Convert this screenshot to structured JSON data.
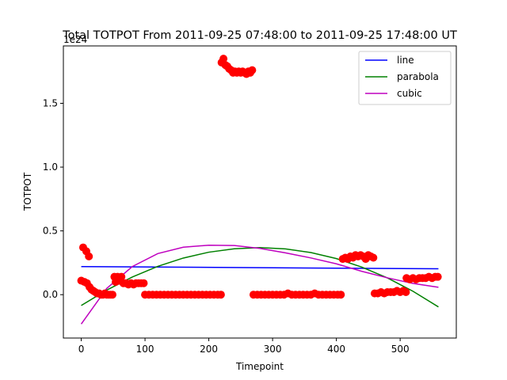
{
  "chart_data": {
    "type": "scatter",
    "title": "Total TOTPOT From 2011-09-25 07:48:00 to 2011-09-25 17:48:00 UT",
    "xlabel": "Timepoint",
    "ylabel": "TOTPOT",
    "offset_text": "1e24",
    "xlim": [
      -28,
      588
    ],
    "ylim": [
      -0.34,
      1.95
    ],
    "y_multiplier": 1e+24,
    "xticks": [
      0,
      100,
      200,
      300,
      400,
      500
    ],
    "yticks": [
      0.0,
      0.5,
      1.0,
      1.5
    ],
    "xtick_labels": [
      "0",
      "100",
      "200",
      "300",
      "400",
      "500"
    ],
    "ytick_labels": [
      "0.0",
      "0.5",
      "1.0",
      "1.5"
    ],
    "grid": false,
    "legend_position": "top-right",
    "scatter": {
      "color": "#ff0000",
      "points": [
        [
          0,
          0.11
        ],
        [
          3,
          0.37
        ],
        [
          5,
          0.1
        ],
        [
          8,
          0.34
        ],
        [
          9,
          0.09
        ],
        [
          12,
          0.3
        ],
        [
          13,
          0.06
        ],
        [
          16,
          0.04
        ],
        [
          19,
          0.03
        ],
        [
          22,
          0.02
        ],
        [
          25,
          0.01
        ],
        [
          28,
          0.01
        ],
        [
          31,
          0.0
        ],
        [
          34,
          0.0
        ],
        [
          37,
          0.01
        ],
        [
          40,
          0.0
        ],
        [
          43,
          0.0
        ],
        [
          46,
          0.0
        ],
        [
          49,
          0.0
        ],
        [
          52,
          0.14
        ],
        [
          54,
          0.1
        ],
        [
          57,
          0.14
        ],
        [
          60,
          0.11
        ],
        [
          63,
          0.14
        ],
        [
          66,
          0.09
        ],
        [
          70,
          0.09
        ],
        [
          74,
          0.08
        ],
        [
          78,
          0.09
        ],
        [
          82,
          0.08
        ],
        [
          86,
          0.09
        ],
        [
          90,
          0.09
        ],
        [
          94,
          0.09
        ],
        [
          98,
          0.09
        ],
        [
          100,
          0.0
        ],
        [
          106,
          0.0
        ],
        [
          112,
          0.0
        ],
        [
          118,
          0.0
        ],
        [
          124,
          0.0
        ],
        [
          130,
          0.0
        ],
        [
          136,
          0.0
        ],
        [
          142,
          0.0
        ],
        [
          148,
          0.0
        ],
        [
          154,
          0.0
        ],
        [
          160,
          0.0
        ],
        [
          166,
          0.0
        ],
        [
          172,
          0.0
        ],
        [
          178,
          0.0
        ],
        [
          184,
          0.0
        ],
        [
          190,
          0.0
        ],
        [
          196,
          0.0
        ],
        [
          202,
          0.0
        ],
        [
          208,
          0.0
        ],
        [
          214,
          0.0
        ],
        [
          219,
          0.0
        ],
        [
          220,
          1.82
        ],
        [
          223,
          1.85
        ],
        [
          226,
          1.8
        ],
        [
          229,
          1.79
        ],
        [
          232,
          1.77
        ],
        [
          235,
          1.76
        ],
        [
          238,
          1.74
        ],
        [
          241,
          1.75
        ],
        [
          244,
          1.74
        ],
        [
          247,
          1.75
        ],
        [
          250,
          1.74
        ],
        [
          253,
          1.75
        ],
        [
          256,
          1.74
        ],
        [
          259,
          1.73
        ],
        [
          262,
          1.75
        ],
        [
          265,
          1.74
        ],
        [
          268,
          1.76
        ],
        [
          270,
          0.0
        ],
        [
          276,
          0.0
        ],
        [
          282,
          0.0
        ],
        [
          288,
          0.0
        ],
        [
          294,
          0.0
        ],
        [
          300,
          0.0
        ],
        [
          306,
          0.0
        ],
        [
          312,
          0.0
        ],
        [
          318,
          0.0
        ],
        [
          324,
          0.01
        ],
        [
          330,
          0.0
        ],
        [
          336,
          0.0
        ],
        [
          342,
          0.0
        ],
        [
          348,
          0.0
        ],
        [
          354,
          0.0
        ],
        [
          360,
          0.0
        ],
        [
          366,
          0.01
        ],
        [
          372,
          0.0
        ],
        [
          378,
          0.0
        ],
        [
          384,
          0.0
        ],
        [
          390,
          0.0
        ],
        [
          396,
          0.0
        ],
        [
          402,
          0.0
        ],
        [
          407,
          0.0
        ],
        [
          410,
          0.28
        ],
        [
          414,
          0.29
        ],
        [
          418,
          0.28
        ],
        [
          422,
          0.3
        ],
        [
          426,
          0.29
        ],
        [
          430,
          0.31
        ],
        [
          434,
          0.3
        ],
        [
          438,
          0.31
        ],
        [
          442,
          0.3
        ],
        [
          446,
          0.28
        ],
        [
          450,
          0.31
        ],
        [
          454,
          0.3
        ],
        [
          458,
          0.29
        ],
        [
          460,
          0.01
        ],
        [
          465,
          0.01
        ],
        [
          470,
          0.02
        ],
        [
          475,
          0.01
        ],
        [
          480,
          0.02
        ],
        [
          485,
          0.02
        ],
        [
          490,
          0.02
        ],
        [
          495,
          0.03
        ],
        [
          500,
          0.02
        ],
        [
          505,
          0.03
        ],
        [
          509,
          0.02
        ],
        [
          510,
          0.13
        ],
        [
          515,
          0.12
        ],
        [
          520,
          0.13
        ],
        [
          525,
          0.12
        ],
        [
          530,
          0.13
        ],
        [
          535,
          0.13
        ],
        [
          540,
          0.13
        ],
        [
          545,
          0.14
        ],
        [
          550,
          0.13
        ],
        [
          555,
          0.14
        ],
        [
          559,
          0.14
        ]
      ]
    },
    "series": [
      {
        "name": "line",
        "color": "#0000ff",
        "x": [
          0,
          560
        ],
        "y": [
          0.22,
          0.203
        ]
      },
      {
        "name": "parabola",
        "color": "#008000",
        "x": [
          0,
          40,
          80,
          120,
          160,
          200,
          240,
          280,
          320,
          360,
          400,
          440,
          480,
          520,
          560
        ],
        "y": [
          -0.085,
          0.036,
          0.138,
          0.222,
          0.287,
          0.333,
          0.36,
          0.369,
          0.359,
          0.33,
          0.283,
          0.216,
          0.131,
          0.027,
          -0.096
        ]
      },
      {
        "name": "cubic",
        "color": "#bf00bf",
        "x": [
          0,
          40,
          80,
          120,
          160,
          200,
          240,
          280,
          320,
          360,
          400,
          440,
          480,
          520,
          560
        ],
        "y": [
          -0.23,
          0.049,
          0.22,
          0.322,
          0.372,
          0.388,
          0.385,
          0.363,
          0.328,
          0.288,
          0.242,
          0.183,
          0.132,
          0.088,
          0.058
        ]
      }
    ]
  }
}
